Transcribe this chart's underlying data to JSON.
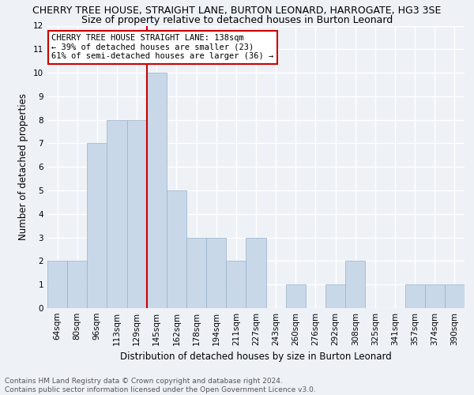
{
  "title": "CHERRY TREE HOUSE, STRAIGHT LANE, BURTON LEONARD, HARROGATE, HG3 3SE",
  "subtitle": "Size of property relative to detached houses in Burton Leonard",
  "xlabel": "Distribution of detached houses by size in Burton Leonard",
  "ylabel": "Number of detached properties",
  "categories": [
    "64sqm",
    "80sqm",
    "96sqm",
    "113sqm",
    "129sqm",
    "145sqm",
    "162sqm",
    "178sqm",
    "194sqm",
    "211sqm",
    "227sqm",
    "243sqm",
    "260sqm",
    "276sqm",
    "292sqm",
    "308sqm",
    "325sqm",
    "341sqm",
    "357sqm",
    "374sqm",
    "390sqm"
  ],
  "values": [
    2,
    2,
    7,
    8,
    8,
    10,
    5,
    3,
    3,
    2,
    3,
    0,
    1,
    0,
    1,
    2,
    0,
    0,
    1,
    1,
    1
  ],
  "bar_color": "#c8d8e8",
  "bar_edge_color": "#9ab0c8",
  "vline_x": 4.5,
  "vline_color": "#cc0000",
  "annotation_text": "CHERRY TREE HOUSE STRAIGHT LANE: 138sqm\n← 39% of detached houses are smaller (23)\n61% of semi-detached houses are larger (36) →",
  "annotation_box_color": "#ffffff",
  "annotation_box_edge_color": "#cc0000",
  "ylim": [
    0,
    12
  ],
  "yticks": [
    0,
    1,
    2,
    3,
    4,
    5,
    6,
    7,
    8,
    9,
    10,
    11,
    12
  ],
  "footnote": "Contains HM Land Registry data © Crown copyright and database right 2024.\nContains public sector information licensed under the Open Government Licence v3.0.",
  "background_color": "#eef2f7",
  "grid_color": "#ffffff",
  "title_fontsize": 9,
  "subtitle_fontsize": 9,
  "axis_label_fontsize": 8.5,
  "tick_fontsize": 7.5,
  "annotation_fontsize": 7.5,
  "footnote_fontsize": 6.5
}
